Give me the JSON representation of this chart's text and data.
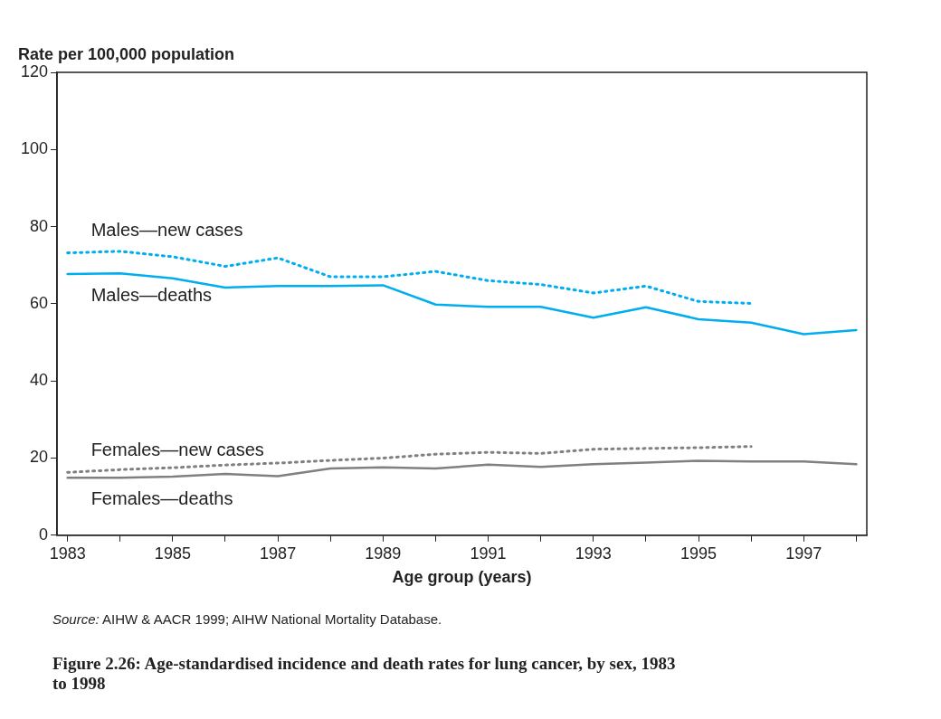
{
  "chart_data": {
    "type": "line",
    "title": "Figure 2.26:  Age-standardised incidence and death rates for lung cancer, by sex, 1983 to 1998",
    "xlabel": "Age group (years)",
    "ylabel": "Rate per 100,000 population",
    "annotations": [
      "Source: AIHW & AACR 1999; AIHW National Mortality Database."
    ],
    "x": [
      1983,
      1984,
      1985,
      1986,
      1987,
      1988,
      1989,
      1990,
      1991,
      1992,
      1993,
      1994,
      1995,
      1996,
      1997,
      1998
    ],
    "series": [
      {
        "name": "Males—new cases",
        "color": "#00aeef",
        "line_style": "dotted",
        "values": [
          73.2,
          73.6,
          72.2,
          69.7,
          71.9,
          67,
          67,
          68.4,
          66,
          65,
          62.8,
          64.6,
          60.6,
          60.1,
          null,
          null
        ]
      },
      {
        "name": "Males—deaths",
        "color": "#00aeef",
        "line_style": "solid",
        "values": [
          67.7,
          67.9,
          66.6,
          64.2,
          64.6,
          64.6,
          64.8,
          59.8,
          59.2,
          59.2,
          56.4,
          59.1,
          56,
          55.1,
          52.1,
          53.2
        ]
      },
      {
        "name": "Females—new cases",
        "color": "#808080",
        "line_style": "dotted",
        "values": [
          16.3,
          17,
          17.5,
          18.2,
          18.7,
          19.4,
          20,
          21,
          21.5,
          21.2,
          22.3,
          22.5,
          22.7,
          23,
          null,
          null
        ]
      },
      {
        "name": "Females—deaths",
        "color": "#808080",
        "line_style": "solid",
        "values": [
          14.9,
          14.9,
          15.2,
          15.9,
          15.3,
          17.3,
          17.6,
          17.3,
          18.3,
          17.7,
          18.4,
          18.8,
          19.3,
          19.1,
          19.1,
          18.4
        ]
      }
    ],
    "xlim": [
      1982.8,
      1998.2
    ],
    "xticks": [
      1983,
      {
        "value": 1984,
        "label": null
      },
      1985,
      {
        "value": 1986,
        "label": null
      },
      1987,
      {
        "value": 1988,
        "label": null
      },
      1989,
      {
        "value": 1990,
        "label": null
      },
      1991,
      {
        "value": 1992,
        "label": null
      },
      1993,
      {
        "value": 1994,
        "label": null
      },
      1995,
      {
        "value": 1996,
        "label": null
      },
      1997,
      {
        "value": 1998,
        "label": null
      }
    ],
    "ylim": [
      0,
      120
    ],
    "yticks": [
      0,
      20,
      40,
      60,
      80,
      100,
      120
    ],
    "grid": false,
    "legend": false,
    "marker": "none"
  }
}
